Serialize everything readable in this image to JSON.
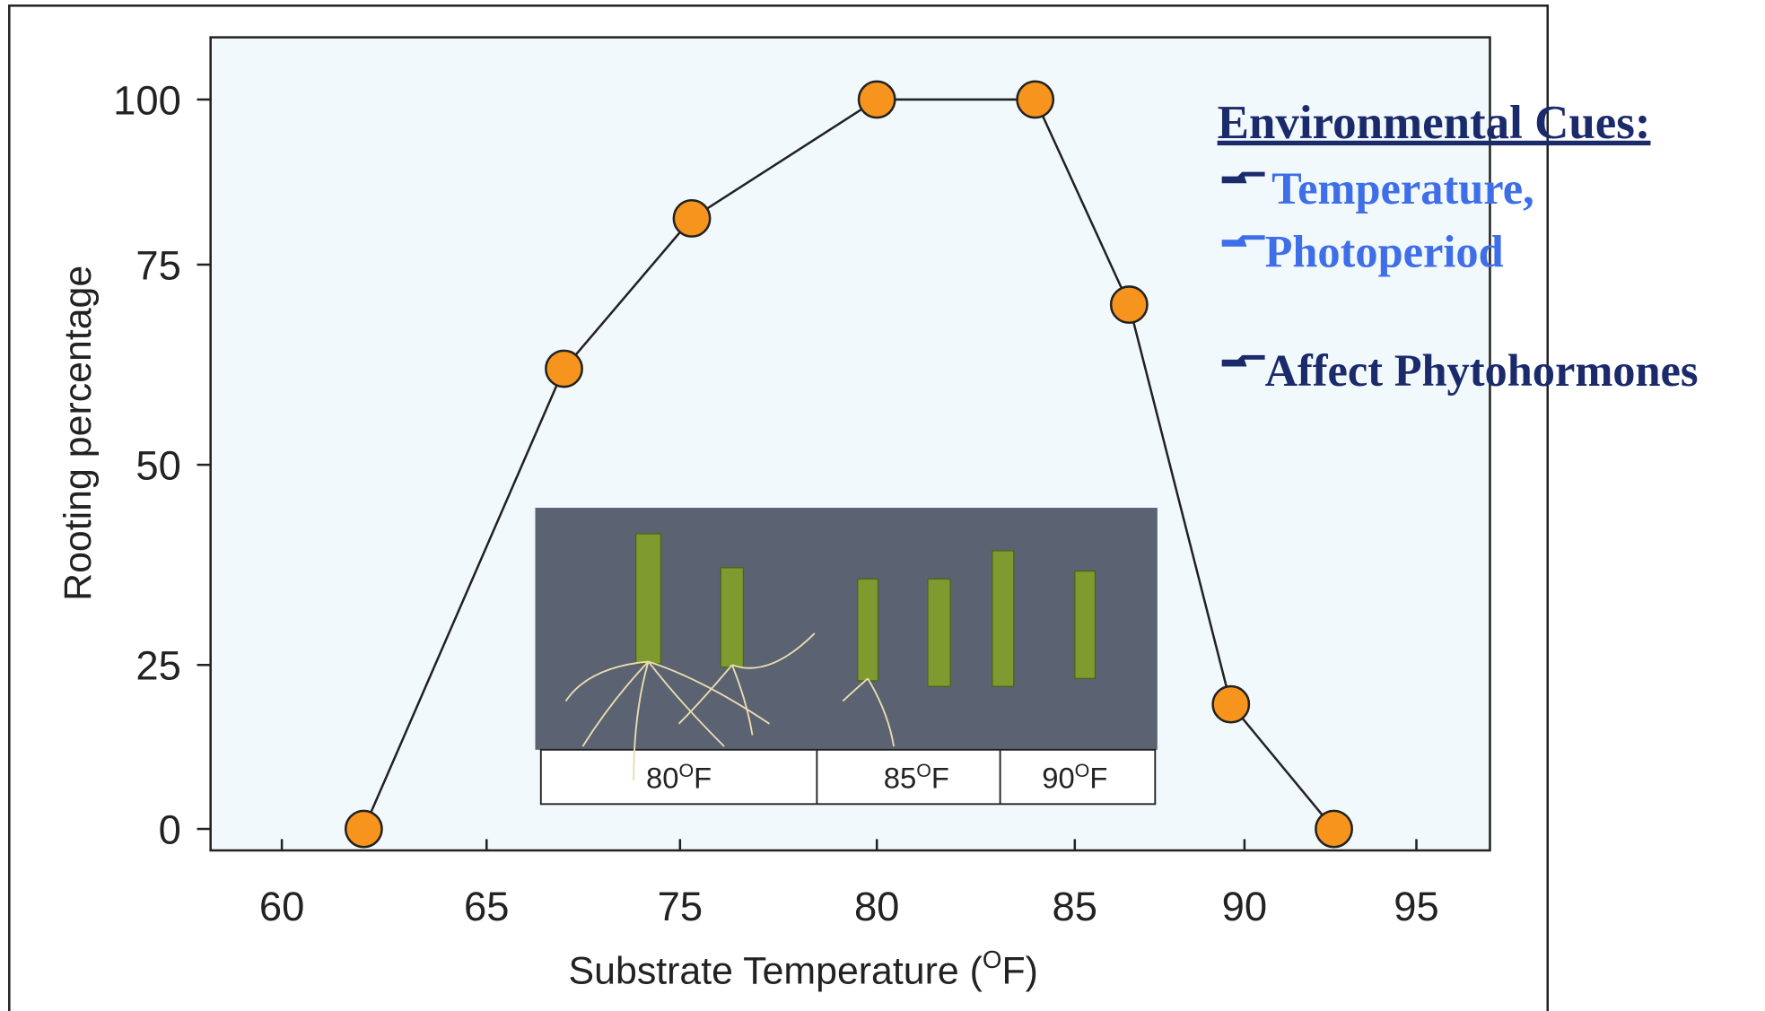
{
  "chart_data": {
    "type": "line",
    "x_label": [
      "Substrate Temperature (",
      "O",
      "F)"
    ],
    "y_label": "Rooting percentage",
    "x": [
      62,
      69,
      75.3,
      80,
      84,
      86.6,
      89.6,
      92.6
    ],
    "values": [
      0,
      62,
      82,
      100,
      100,
      70,
      19,
      0
    ],
    "color": "#f7941d",
    "line_color": "#222222",
    "xlim": [
      58.3,
      97.1
    ],
    "xticks": [
      60,
      65,
      75,
      80,
      85,
      90,
      95
    ],
    "ylim": [
      -3,
      109
    ],
    "yticks": [
      0,
      25,
      50,
      75,
      100
    ],
    "inset_labels": [
      [
        "80",
        "O",
        "F"
      ],
      [
        "85",
        "O",
        "F"
      ],
      [
        "90",
        "O",
        "F"
      ]
    ]
  },
  "side_text": {
    "heading": "Environmental Cues:",
    "items": [
      "Temperature,",
      "Photoperiod",
      "Affect Phytohormones"
    ]
  }
}
